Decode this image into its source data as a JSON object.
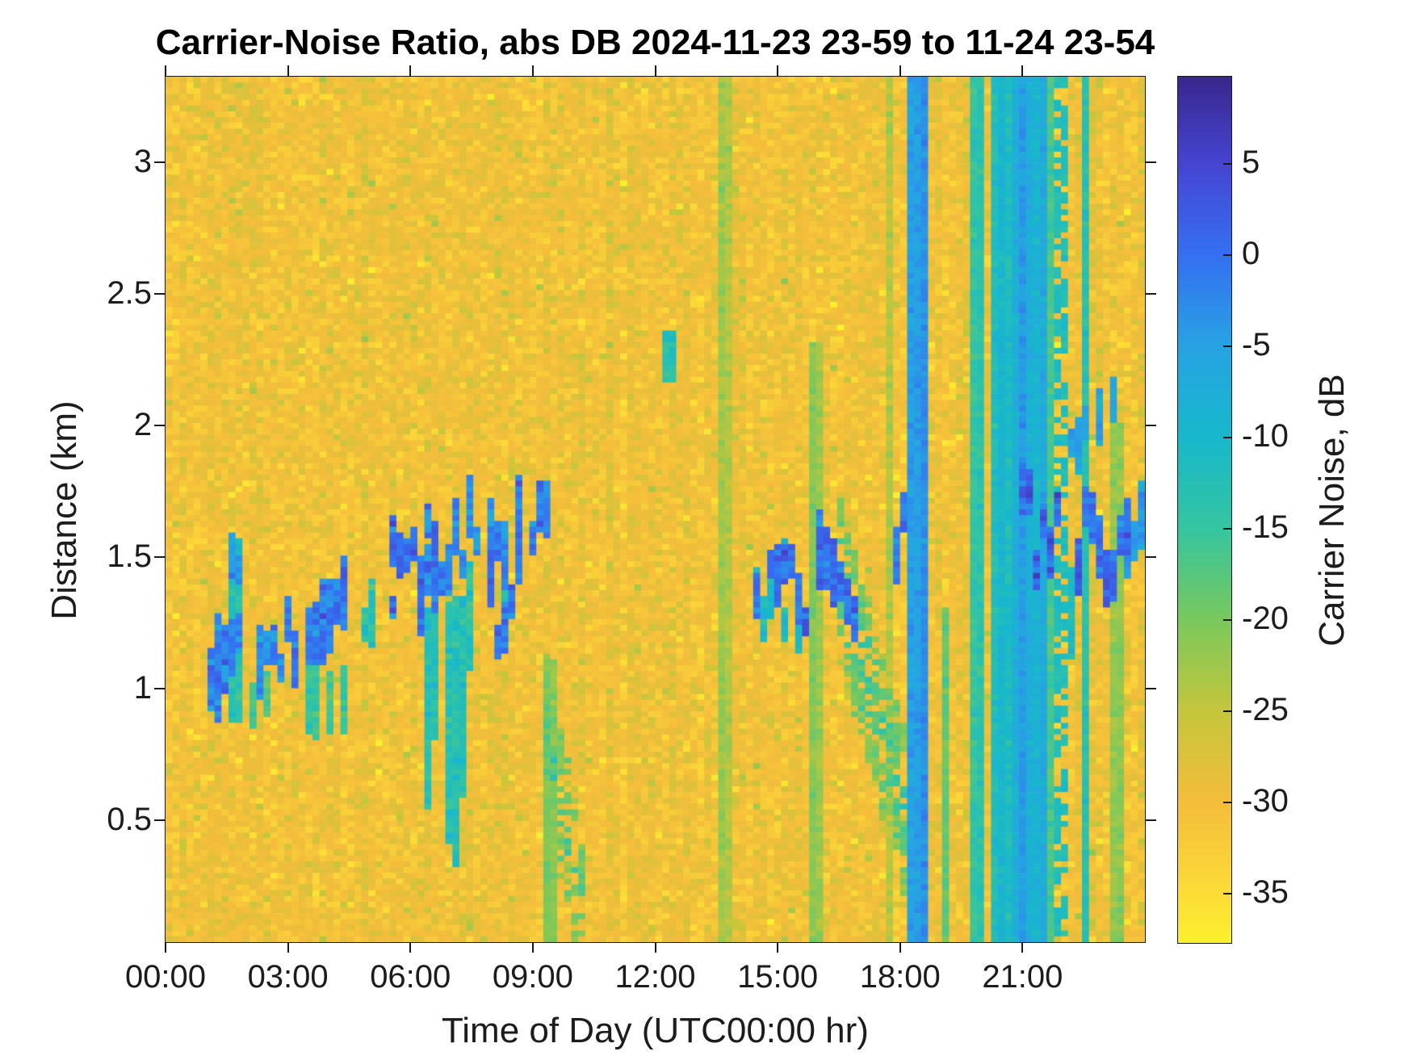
{
  "title": "Carrier-Noise Ratio, abs DB 2024-11-23 23-59 to 11-24 23-54",
  "xlabel": "Time of Day (UTC00:00 hr)",
  "ylabel": "Distance (km)",
  "colorbar": {
    "label": "Carrier Noise, dB",
    "tick_values": [
      5,
      0,
      -5,
      -10,
      -15,
      -20,
      -25,
      -30,
      -35
    ],
    "range_db": [
      -37.7,
      9.78
    ]
  },
  "axes": {
    "x_tick_labels": [
      "00:00",
      "03:00",
      "06:00",
      "09:00",
      "12:00",
      "15:00",
      "18:00",
      "21:00"
    ],
    "x_tick_hours": [
      0,
      3,
      6,
      9,
      12,
      15,
      18,
      21
    ],
    "x_range_hours": [
      0,
      24
    ],
    "y_tick_values": [
      "3",
      "2.5",
      "2",
      "1.5",
      "1",
      "0.5"
    ],
    "y_tick_km": [
      3,
      2.5,
      2,
      1.5,
      1,
      0.5
    ],
    "y_range_km": [
      0.037,
      3.325
    ]
  },
  "chart_data": {
    "type": "heatmap",
    "title": "Carrier-Noise Ratio, abs DB 2024-11-23 23-59 to 11-24 23-54",
    "xlabel": "Time of Day (UTC00:00 hr)",
    "ylabel": "Distance (km)",
    "x_unit": "hours_utc",
    "y_unit": "km",
    "value_unit": "dB",
    "x_range": [
      0,
      24
    ],
    "y_range": [
      0.037,
      3.325
    ],
    "clim": [
      -37.7,
      9.78
    ],
    "grid": {
      "cols": 140,
      "rows": 150
    },
    "seed": 20241124,
    "background": {
      "mean_db": -30,
      "cell_sd": 1.7,
      "col_sd": 0.55,
      "speckle_green_p": 0.05,
      "speckle_green_dv": 3.2,
      "speckle_yellow_p": 0.07,
      "speckle_yellow_dv": -3.0
    },
    "colormap": [
      [
        9.78,
        "#38278c"
      ],
      [
        5,
        "#4645d2"
      ],
      [
        0,
        "#356ff2"
      ],
      [
        -5,
        "#27a3e3"
      ],
      [
        -10,
        "#17b8cb"
      ],
      [
        -15,
        "#35c5a0"
      ],
      [
        -20,
        "#7ac85c"
      ],
      [
        -25,
        "#c4c63b"
      ],
      [
        -30,
        "#f4bd3b"
      ],
      [
        -35,
        "#fcdc37"
      ],
      [
        -37.7,
        "#f9f12c"
      ]
    ],
    "features": [
      {
        "type": "dashes",
        "t": [
          1.05,
          1.85
        ],
        "d": [
          0.95,
          1.22
        ],
        "v": -3,
        "density": 0.9,
        "core": 0.35
      },
      {
        "type": "column",
        "t": [
          1.58,
          1.78
        ],
        "d": [
          0.9,
          1.55
        ],
        "v": -13,
        "density": 1
      },
      {
        "type": "dashes",
        "t": [
          1.55,
          1.8
        ],
        "d": [
          1.28,
          1.52
        ],
        "v": -4,
        "density": 0.8
      },
      {
        "type": "fingers",
        "t": [
          2.2,
          2.6
        ],
        "d": [
          0.8,
          1.05
        ],
        "v": -16,
        "density": 0.3
      },
      {
        "type": "dashes",
        "t": [
          2.1,
          2.55
        ],
        "d": [
          1.02,
          1.22
        ],
        "v": -4,
        "density": 0.75
      },
      {
        "type": "dashes",
        "t": [
          2.65,
          3.2
        ],
        "d": [
          1.08,
          1.3
        ],
        "v": -3,
        "density": 0.8,
        "core": 0.3
      },
      {
        "type": "track",
        "t": [
          3.25,
          4.45
        ],
        "d": [
          1.1,
          1.36
        ],
        "v": -2,
        "th": 0.14,
        "density": 0.9,
        "core": 0.3
      },
      {
        "type": "fingers",
        "t": [
          3.3,
          4.4
        ],
        "d": [
          0.72,
          1.1
        ],
        "v": -15,
        "density": 0.3
      },
      {
        "type": "dashes",
        "t": [
          4.88,
          5.06
        ],
        "d": [
          1.24,
          1.38
        ],
        "v": -13,
        "density": 0.7
      },
      {
        "type": "dashes",
        "t": [
          5.55,
          6.6
        ],
        "d": [
          1.3,
          1.62
        ],
        "v": -1,
        "density": 0.9,
        "core": 0.35
      },
      {
        "type": "fingers",
        "t": [
          6.45,
          7.3
        ],
        "d": [
          0.28,
          1.42
        ],
        "v": -13,
        "density": 0.6
      },
      {
        "type": "dashes",
        "t": [
          6.4,
          7.35
        ],
        "d": [
          1.4,
          1.68
        ],
        "v": -3,
        "density": 0.8,
        "core": 0.3
      },
      {
        "type": "dashes",
        "t": [
          7.4,
          8.35
        ],
        "d": [
          1.5,
          1.78
        ],
        "v": -4,
        "density": 0.6
      },
      {
        "type": "fingers",
        "t": [
          7.5,
          8.3
        ],
        "d": [
          1.0,
          1.48
        ],
        "v": -14,
        "density": 0.35
      },
      {
        "type": "dashes",
        "t": [
          7.95,
          8.65
        ],
        "d": [
          1.18,
          1.58
        ],
        "v": -2,
        "density": 0.85,
        "core": 0.35
      },
      {
        "type": "dashes",
        "t": [
          8.65,
          9.35
        ],
        "d": [
          1.52,
          1.78
        ],
        "v": -3,
        "density": 0.75,
        "core": 0.3
      },
      {
        "type": "band",
        "t": [
          9.3,
          10.25
        ],
        "d": [
          0.85,
          0.18
        ],
        "hw": 0.28,
        "v": -17,
        "density": 0.55
      },
      {
        "type": "vline",
        "t": [
          9.4,
          9.48
        ],
        "d": [
          0.037,
          1.1
        ],
        "v": -21
      },
      {
        "type": "column",
        "t": [
          12.3,
          12.45
        ],
        "d": [
          2.2,
          2.35
        ],
        "v": -13,
        "density": 1
      },
      {
        "type": "vline",
        "t": [
          13.7,
          13.78
        ],
        "v": -23
      },
      {
        "type": "dashes",
        "t": [
          14.4,
          15.75
        ],
        "d": [
          1.22,
          1.56
        ],
        "v": -11,
        "density": 0.55
      },
      {
        "type": "dashes",
        "t": [
          14.45,
          15.65
        ],
        "d": [
          1.25,
          1.52
        ],
        "v": -1,
        "density": 0.85,
        "core": 0.35
      },
      {
        "type": "vline",
        "t": [
          15.9,
          15.98
        ],
        "d": [
          0.037,
          2.3
        ],
        "v": -22
      },
      {
        "type": "track",
        "t": [
          15.95,
          16.95
        ],
        "d": [
          1.55,
          1.3
        ],
        "v": -1,
        "th": 0.13,
        "density": 0.95,
        "core": 0.35
      },
      {
        "type": "band",
        "t": [
          16.6,
          18.05
        ],
        "d": [
          1.42,
          0.55
        ],
        "hw": 0.3,
        "v": -16,
        "density": 0.7
      },
      {
        "type": "vline",
        "t": [
          17.7,
          17.78
        ],
        "v": -23
      },
      {
        "type": "dashes",
        "t": [
          17.9,
          18.22
        ],
        "d": [
          1.45,
          1.92
        ],
        "v": -2,
        "density": 0.9,
        "core": 0.3
      },
      {
        "type": "vline",
        "t": [
          18.3,
          18.52
        ],
        "v": -4
      },
      {
        "type": "vline",
        "t": [
          18.54,
          18.64
        ],
        "v": -17
      },
      {
        "type": "vline",
        "t": [
          19.05,
          19.16
        ],
        "d": [
          0.037,
          1.3
        ],
        "v": -19
      },
      {
        "type": "vline",
        "t": [
          19.72,
          19.92
        ],
        "v": -14
      },
      {
        "type": "vline",
        "t": [
          20.28,
          21.02
        ],
        "v": -11,
        "stripe": 0.35,
        "stripe_dv": -6
      },
      {
        "type": "vline",
        "t": [
          21.02,
          21.52
        ],
        "v": -5,
        "stripe": 0.3,
        "stripe_dv": -5
      },
      {
        "type": "fingers",
        "t": [
          21.35,
          22.45
        ],
        "d": [
          1.02,
          1.5
        ],
        "v": -12,
        "density": 0.5
      },
      {
        "type": "dashes",
        "t": [
          21.0,
          22.45
        ],
        "d": [
          1.38,
          1.78
        ],
        "v": 0,
        "density": 0.6,
        "core": 0.4
      },
      {
        "type": "vline",
        "t": [
          21.55,
          21.63
        ],
        "v": -17
      },
      {
        "type": "vline",
        "t": [
          21.78,
          22.02
        ],
        "v": -13,
        "density": 0.6
      },
      {
        "type": "vline",
        "t": [
          22.48,
          22.58
        ],
        "v": -14
      },
      {
        "type": "dashes",
        "t": [
          22.2,
          23.35
        ],
        "d": [
          1.85,
          2.18
        ],
        "v": -6,
        "density": 0.5
      },
      {
        "type": "track",
        "t": [
          22.55,
          23.05
        ],
        "d": [
          1.72,
          1.45
        ],
        "v": -1,
        "th": 0.1,
        "density": 0.9,
        "core": 0.3
      },
      {
        "type": "track",
        "t": [
          23.05,
          23.6
        ],
        "d": [
          1.45,
          1.62
        ],
        "v": -1,
        "th": 0.1,
        "density": 0.9,
        "core": 0.3
      },
      {
        "type": "vline",
        "t": [
          23.28,
          23.36
        ],
        "d": [
          0.037,
          2.0
        ],
        "v": -20
      },
      {
        "type": "track",
        "t": [
          23.55,
          24.0
        ],
        "d": [
          1.5,
          1.68
        ],
        "v": -5,
        "th": 0.12,
        "density": 0.85
      }
    ]
  }
}
